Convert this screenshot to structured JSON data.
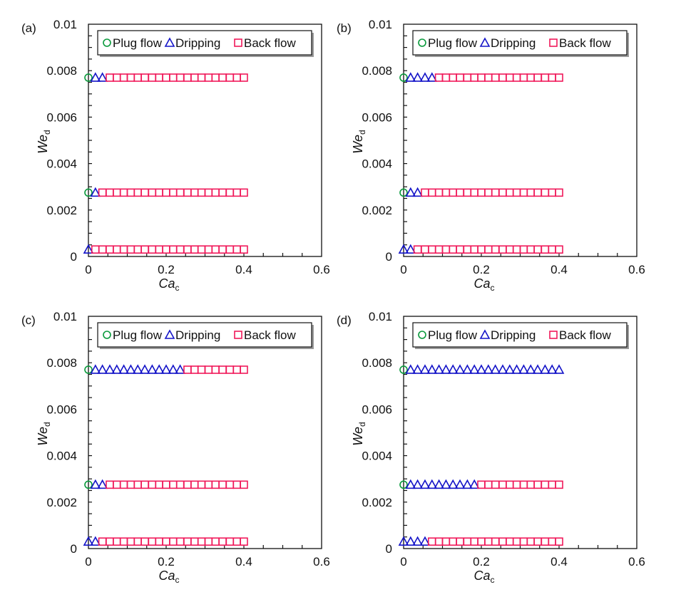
{
  "colors": {
    "plug": "#0a9a3c",
    "drip": "#1414c8",
    "back": "#f0195a",
    "axis": "#111111"
  },
  "chart_data": [
    {
      "type": "scatter",
      "panel_label": "(a)",
      "xlabel": {
        "main": "Ca",
        "sub": "c"
      },
      "ylabel": {
        "main": "We",
        "sub": "d"
      },
      "xlim": [
        0,
        0.6
      ],
      "ylim": [
        0,
        0.01
      ],
      "xticks": [
        "0",
        "0.2",
        "0.4",
        "0.6"
      ],
      "xtick_values": [
        0,
        0.2,
        0.4,
        0.6
      ],
      "yticks": [
        "0",
        "0.002",
        "0.004",
        "0.006",
        "0.008",
        "0.01"
      ],
      "ytick_values": [
        0,
        0.002,
        0.004,
        0.006,
        0.008,
        0.01
      ],
      "legend": {
        "placement": "top",
        "entries": [
          "Plug flow",
          "Dripping",
          "Back flow"
        ]
      },
      "series": [
        {
          "name": "Plug flow",
          "marker": "circle",
          "rows": [
            {
              "y": 0.0077,
              "x": [
                0
              ]
            },
            {
              "y": 0.00275,
              "x": [
                0
              ]
            }
          ]
        },
        {
          "name": "Dripping",
          "marker": "triangle",
          "rows": [
            {
              "y": 0.0077,
              "x": [
                0.018,
                0.036
              ]
            },
            {
              "y": 0.00275,
              "x": [
                0.018
              ]
            },
            {
              "y": 0.0003,
              "x": [
                0
              ]
            }
          ]
        },
        {
          "name": "Back flow",
          "marker": "square",
          "rows": [
            {
              "y": 0.0077,
              "x": [
                0.055,
                0.073,
                0.091,
                0.109,
                0.127,
                0.145,
                0.164,
                0.182,
                0.2,
                0.218,
                0.236,
                0.255,
                0.273,
                0.291,
                0.309,
                0.327,
                0.345,
                0.364,
                0.382,
                0.4
              ]
            },
            {
              "y": 0.00275,
              "x": [
                0.036,
                0.055,
                0.073,
                0.091,
                0.109,
                0.127,
                0.145,
                0.164,
                0.182,
                0.2,
                0.218,
                0.236,
                0.255,
                0.273,
                0.291,
                0.309,
                0.327,
                0.345,
                0.364,
                0.382,
                0.4
              ]
            },
            {
              "y": 0.0003,
              "x": [
                0.018,
                0.036,
                0.055,
                0.073,
                0.091,
                0.109,
                0.127,
                0.145,
                0.164,
                0.182,
                0.2,
                0.218,
                0.236,
                0.255,
                0.273,
                0.291,
                0.309,
                0.327,
                0.345,
                0.364,
                0.382,
                0.4
              ]
            }
          ]
        }
      ]
    },
    {
      "type": "scatter",
      "panel_label": "(b)",
      "xlabel": {
        "main": "Ca",
        "sub": "c"
      },
      "ylabel": {
        "main": "We",
        "sub": "d"
      },
      "xlim": [
        0,
        0.6
      ],
      "ylim": [
        0,
        0.01
      ],
      "xticks": [
        "0",
        "0.2",
        "0.4",
        "0.6"
      ],
      "xtick_values": [
        0,
        0.2,
        0.4,
        0.6
      ],
      "yticks": [
        "0",
        "0.002",
        "0.004",
        "0.006",
        "0.008",
        "0.01"
      ],
      "ytick_values": [
        0,
        0.002,
        0.004,
        0.006,
        0.008,
        0.01
      ],
      "legend": {
        "placement": "top",
        "entries": [
          "Plug flow",
          "Dripping",
          "Back flow"
        ]
      },
      "series": [
        {
          "name": "Plug flow",
          "marker": "circle",
          "rows": [
            {
              "y": 0.0077,
              "x": [
                0
              ]
            },
            {
              "y": 0.00275,
              "x": [
                0
              ]
            }
          ]
        },
        {
          "name": "Dripping",
          "marker": "triangle",
          "rows": [
            {
              "y": 0.0077,
              "x": [
                0.018,
                0.036,
                0.055,
                0.073
              ]
            },
            {
              "y": 0.00275,
              "x": [
                0.018,
                0.036
              ]
            },
            {
              "y": 0.0003,
              "x": [
                0,
                0.018
              ]
            }
          ]
        },
        {
          "name": "Back flow",
          "marker": "square",
          "rows": [
            {
              "y": 0.0077,
              "x": [
                0.091,
                0.109,
                0.127,
                0.145,
                0.164,
                0.182,
                0.2,
                0.218,
                0.236,
                0.255,
                0.273,
                0.291,
                0.309,
                0.327,
                0.345,
                0.364,
                0.382,
                0.4
              ]
            },
            {
              "y": 0.00275,
              "x": [
                0.055,
                0.073,
                0.091,
                0.109,
                0.127,
                0.145,
                0.164,
                0.182,
                0.2,
                0.218,
                0.236,
                0.255,
                0.273,
                0.291,
                0.309,
                0.327,
                0.345,
                0.364,
                0.382,
                0.4
              ]
            },
            {
              "y": 0.0003,
              "x": [
                0.036,
                0.055,
                0.073,
                0.091,
                0.109,
                0.127,
                0.145,
                0.164,
                0.182,
                0.2,
                0.218,
                0.236,
                0.255,
                0.273,
                0.291,
                0.309,
                0.327,
                0.345,
                0.364,
                0.382,
                0.4
              ]
            }
          ]
        }
      ]
    },
    {
      "type": "scatter",
      "panel_label": "(c)",
      "xlabel": {
        "main": "Ca",
        "sub": "c"
      },
      "ylabel": {
        "main": "We",
        "sub": "d"
      },
      "xlim": [
        0,
        0.6
      ],
      "ylim": [
        0,
        0.01
      ],
      "xticks": [
        "0",
        "0.2",
        "0.4",
        "0.6"
      ],
      "xtick_values": [
        0,
        0.2,
        0.4,
        0.6
      ],
      "yticks": [
        "0",
        "0.002",
        "0.004",
        "0.006",
        "0.008",
        "0.01"
      ],
      "ytick_values": [
        0,
        0.002,
        0.004,
        0.006,
        0.008,
        0.01
      ],
      "legend": {
        "placement": "top",
        "entries": [
          "Plug flow",
          "Dripping",
          "Back flow"
        ]
      },
      "series": [
        {
          "name": "Plug flow",
          "marker": "circle",
          "rows": [
            {
              "y": 0.0077,
              "x": [
                0
              ]
            },
            {
              "y": 0.00275,
              "x": [
                0
              ]
            }
          ]
        },
        {
          "name": "Dripping",
          "marker": "triangle",
          "rows": [
            {
              "y": 0.0077,
              "x": [
                0.018,
                0.036,
                0.055,
                0.073,
                0.091,
                0.109,
                0.127,
                0.145,
                0.164,
                0.182,
                0.2,
                0.218,
                0.236
              ]
            },
            {
              "y": 0.00275,
              "x": [
                0.018,
                0.036
              ]
            },
            {
              "y": 0.0003,
              "x": [
                0,
                0.018
              ]
            }
          ]
        },
        {
          "name": "Back flow",
          "marker": "square",
          "rows": [
            {
              "y": 0.0077,
              "x": [
                0.255,
                0.273,
                0.291,
                0.309,
                0.327,
                0.345,
                0.364,
                0.382,
                0.4
              ]
            },
            {
              "y": 0.00275,
              "x": [
                0.055,
                0.073,
                0.091,
                0.109,
                0.127,
                0.145,
                0.164,
                0.182,
                0.2,
                0.218,
                0.236,
                0.255,
                0.273,
                0.291,
                0.309,
                0.327,
                0.345,
                0.364,
                0.382,
                0.4
              ]
            },
            {
              "y": 0.0003,
              "x": [
                0.036,
                0.055,
                0.073,
                0.091,
                0.109,
                0.127,
                0.145,
                0.164,
                0.182,
                0.2,
                0.218,
                0.236,
                0.255,
                0.273,
                0.291,
                0.309,
                0.327,
                0.345,
                0.364,
                0.382,
                0.4
              ]
            }
          ]
        }
      ]
    },
    {
      "type": "scatter",
      "panel_label": "(d)",
      "xlabel": {
        "main": "Ca",
        "sub": "c"
      },
      "ylabel": {
        "main": "We",
        "sub": "d"
      },
      "xlim": [
        0,
        0.6
      ],
      "ylim": [
        0,
        0.01
      ],
      "xticks": [
        "0",
        "0.2",
        "0.4",
        "0.6"
      ],
      "xtick_values": [
        0,
        0.2,
        0.4,
        0.6
      ],
      "yticks": [
        "0",
        "0.002",
        "0.004",
        "0.006",
        "0.008",
        "0.01"
      ],
      "ytick_values": [
        0,
        0.002,
        0.004,
        0.006,
        0.008,
        0.01
      ],
      "legend": {
        "placement": "top",
        "entries": [
          "Plug flow",
          "Dripping",
          "Back flow"
        ]
      },
      "series": [
        {
          "name": "Plug flow",
          "marker": "circle",
          "rows": [
            {
              "y": 0.0077,
              "x": [
                0
              ]
            },
            {
              "y": 0.00275,
              "x": [
                0
              ]
            }
          ]
        },
        {
          "name": "Dripping",
          "marker": "triangle",
          "rows": [
            {
              "y": 0.0077,
              "x": [
                0.018,
                0.036,
                0.055,
                0.073,
                0.091,
                0.109,
                0.127,
                0.145,
                0.164,
                0.182,
                0.2,
                0.218,
                0.236,
                0.255,
                0.273,
                0.291,
                0.309,
                0.327,
                0.345,
                0.364,
                0.382,
                0.4
              ]
            },
            {
              "y": 0.00275,
              "x": [
                0.018,
                0.036,
                0.055,
                0.073,
                0.091,
                0.109,
                0.127,
                0.145,
                0.164,
                0.182
              ]
            },
            {
              "y": 0.0003,
              "x": [
                0,
                0.018,
                0.036,
                0.055
              ]
            }
          ]
        },
        {
          "name": "Back flow",
          "marker": "square",
          "rows": [
            {
              "y": 0.00275,
              "x": [
                0.2,
                0.218,
                0.236,
                0.255,
                0.273,
                0.291,
                0.309,
                0.327,
                0.345,
                0.364,
                0.382,
                0.4
              ]
            },
            {
              "y": 0.0003,
              "x": [
                0.073,
                0.091,
                0.109,
                0.127,
                0.145,
                0.164,
                0.182,
                0.2,
                0.218,
                0.236,
                0.255,
                0.273,
                0.291,
                0.309,
                0.327,
                0.345,
                0.364,
                0.382,
                0.4
              ]
            }
          ]
        }
      ]
    }
  ]
}
